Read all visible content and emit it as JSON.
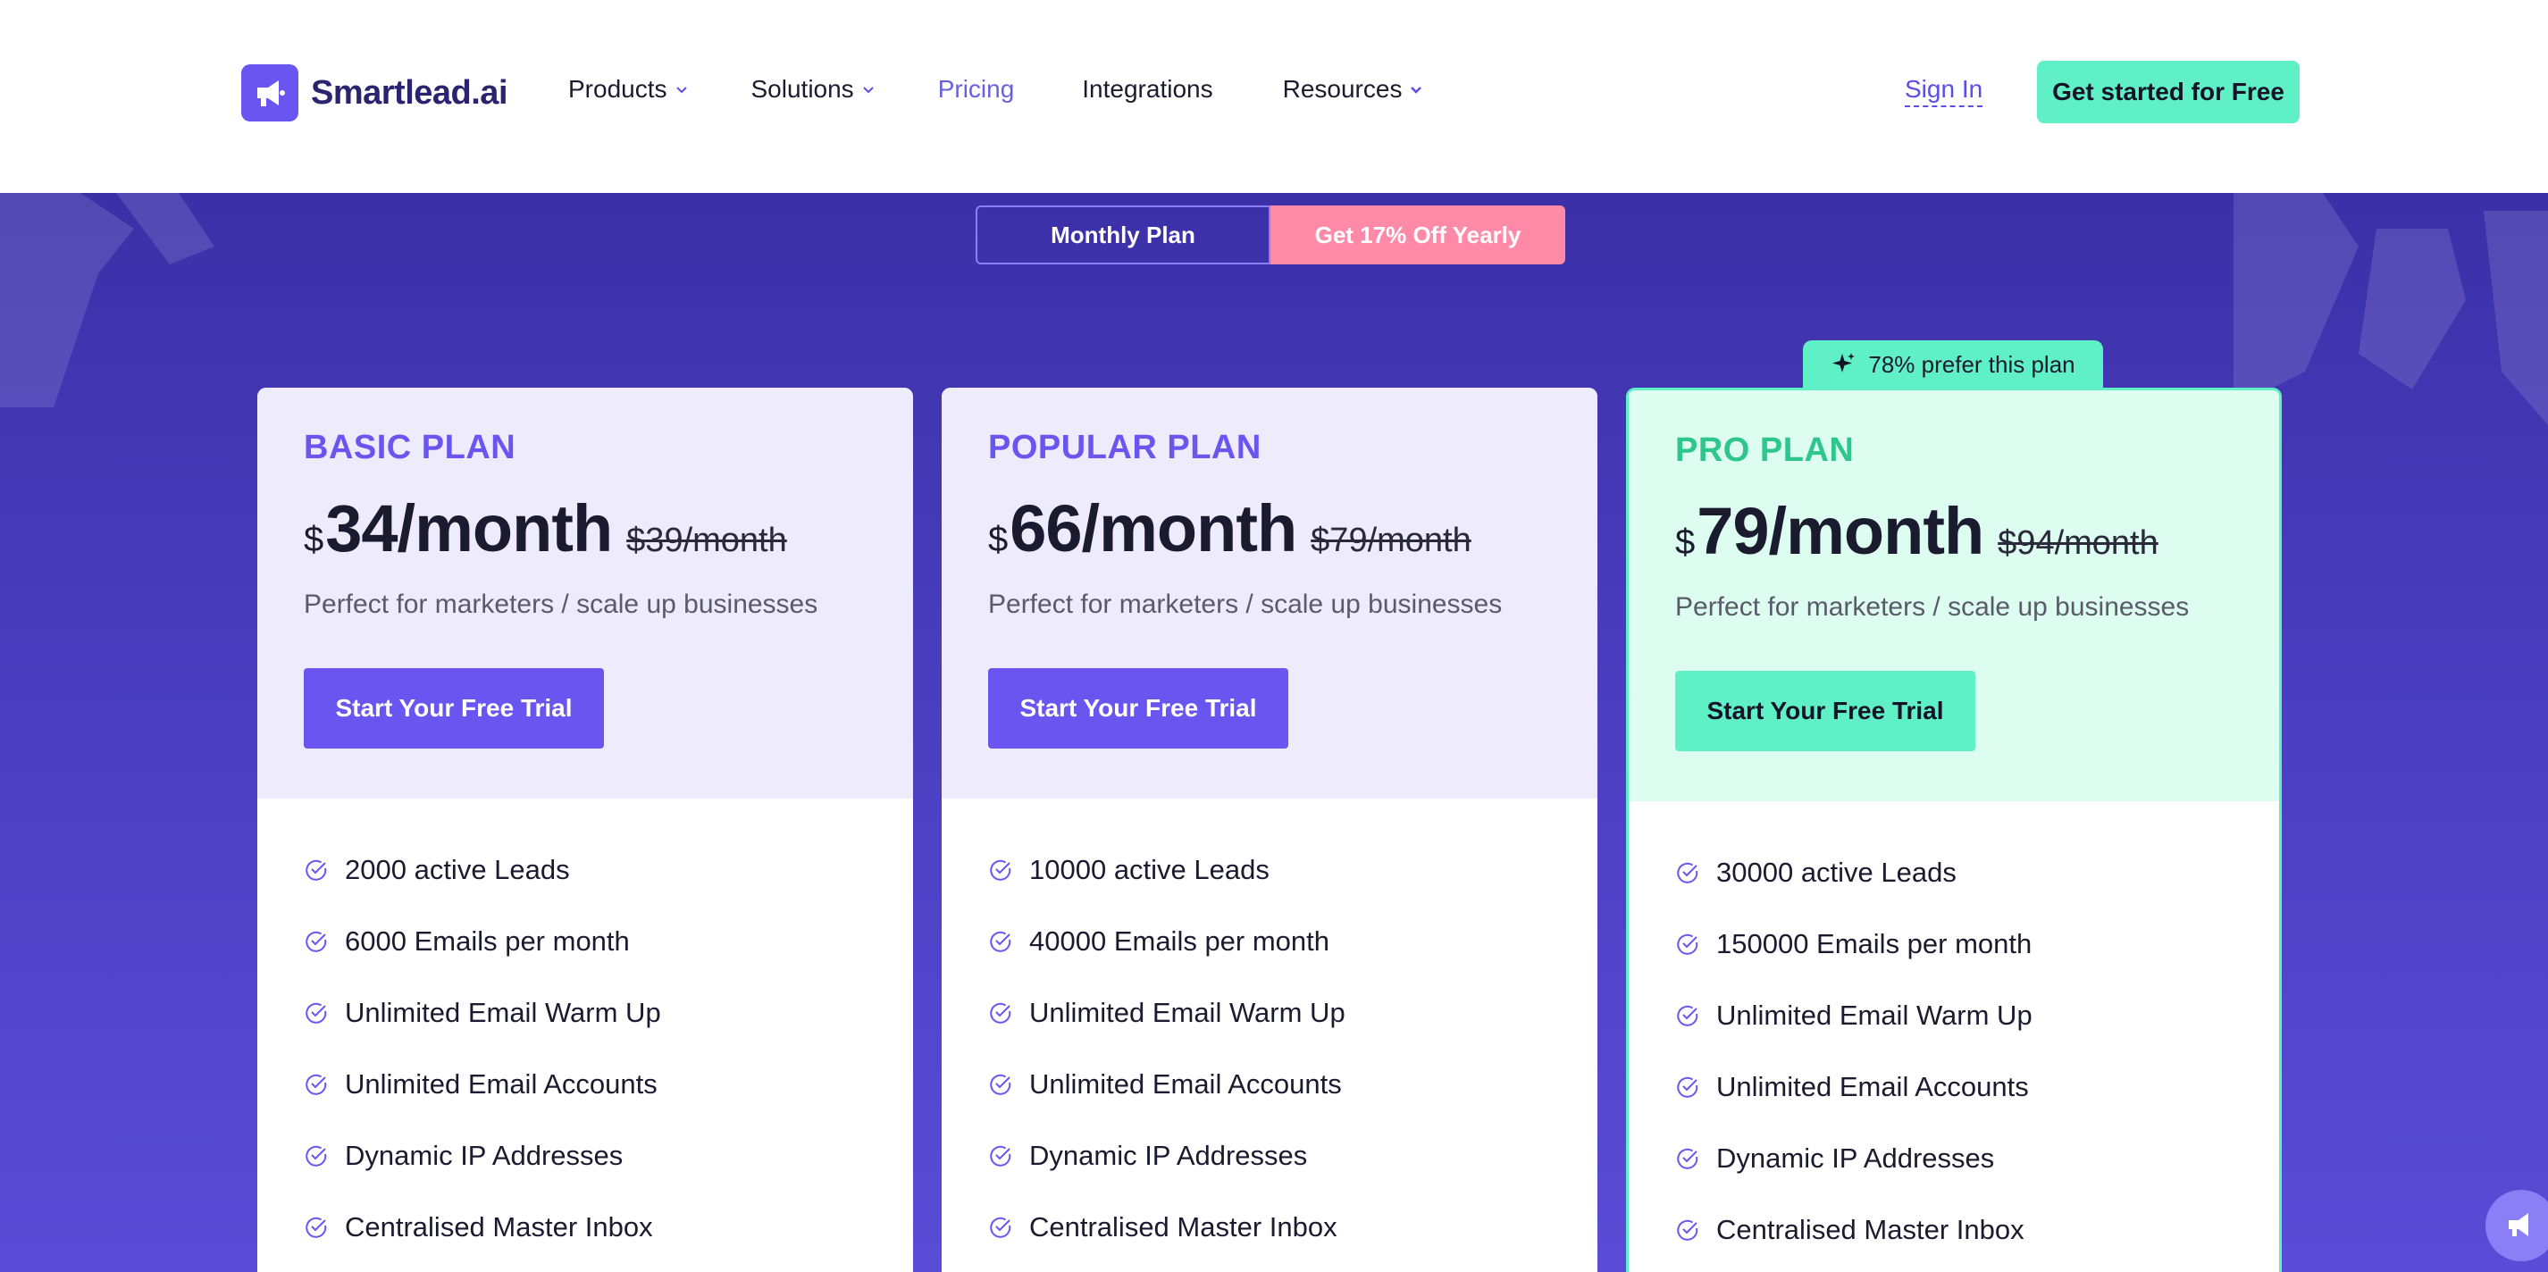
{
  "brand": {
    "name": "Smartlead.ai",
    "accent": "#6a55f0",
    "mint": "#5ff0c6"
  },
  "nav": {
    "items": [
      {
        "label": "Products",
        "has_dropdown": true
      },
      {
        "label": "Solutions",
        "has_dropdown": true
      },
      {
        "label": "Pricing",
        "has_dropdown": false,
        "active": true
      },
      {
        "label": "Integrations",
        "has_dropdown": false
      },
      {
        "label": "Resources",
        "has_dropdown": true
      }
    ],
    "sign_in": "Sign In",
    "get_started": "Get started for Free"
  },
  "toggle": {
    "monthly": "Monthly Plan",
    "yearly": "Get 17% Off Yearly"
  },
  "badge": {
    "text": "78% prefer this plan",
    "icon": "sparkle-icon"
  },
  "plans": [
    {
      "name": "BASIC PLAN",
      "currency": "$",
      "price": "34/month",
      "old_price": "$39/month",
      "description": "Perfect for marketers / scale up businesses",
      "cta": "Start Your Free Trial",
      "features": [
        "2000 active Leads",
        "6000 Emails per month",
        "Unlimited Email Warm Up",
        "Unlimited Email Accounts",
        "Dynamic IP Addresses",
        "Centralised Master Inbox"
      ]
    },
    {
      "name": "POPULAR PLAN",
      "currency": "$",
      "price": "66/month",
      "old_price": "$79/month",
      "description": "Perfect for marketers / scale up businesses",
      "cta": "Start Your Free Trial",
      "features": [
        "10000 active Leads",
        "40000 Emails per month",
        "Unlimited Email Warm Up",
        "Unlimited Email Accounts",
        "Dynamic IP Addresses",
        "Centralised Master Inbox"
      ]
    },
    {
      "name": "PRO PLAN",
      "currency": "$",
      "price": "79/month",
      "old_price": "$94/month",
      "description": "Perfect for marketers / scale up businesses",
      "cta": "Start Your Free Trial",
      "features": [
        "30000 active Leads",
        "150000 Emails per month",
        "Unlimited Email Warm Up",
        "Unlimited Email Accounts",
        "Dynamic IP Addresses",
        "Centralised Master Inbox"
      ]
    }
  ],
  "icons": {
    "check": "check-circle-icon",
    "chat": "chat-widget-icon"
  }
}
